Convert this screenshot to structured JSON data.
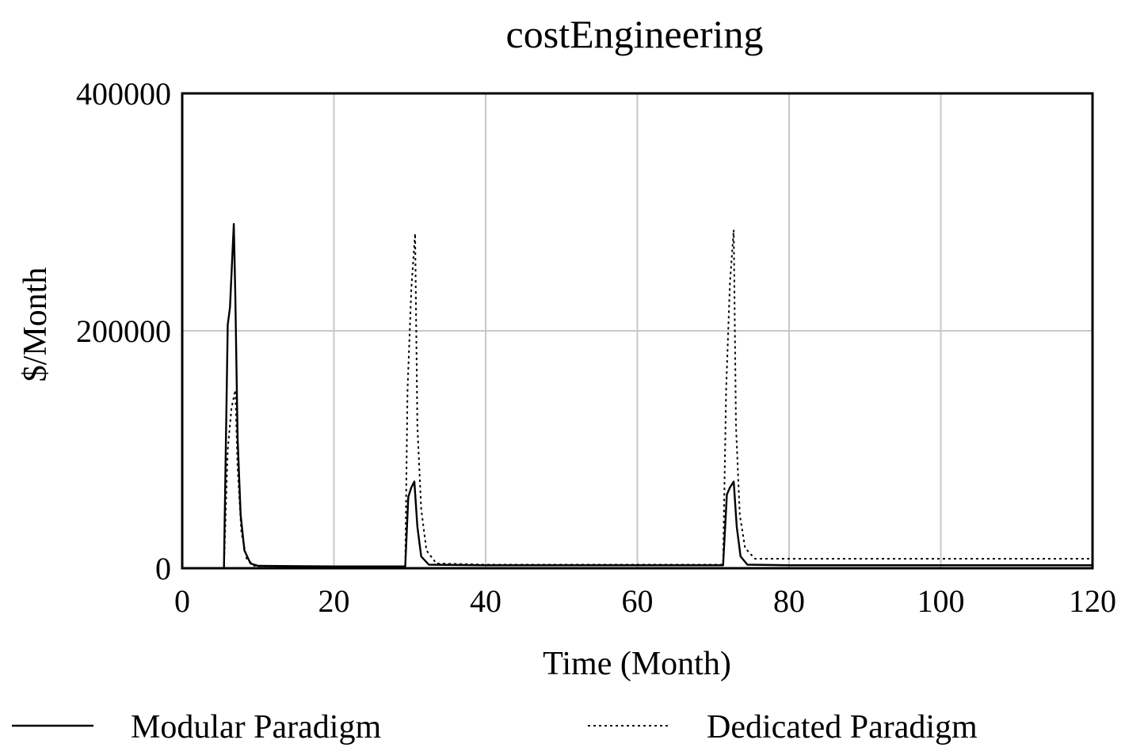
{
  "chart_data": {
    "type": "line",
    "title": "costEngineering",
    "xlabel": "Time (Month)",
    "ylabel": "$/Month",
    "xlim": [
      0,
      120
    ],
    "ylim": [
      0,
      400000
    ],
    "x_ticks": [
      0,
      20,
      40,
      60,
      80,
      100,
      120
    ],
    "x_tick_labels": [
      "0",
      "20",
      "40",
      "60",
      "80",
      "100",
      "120"
    ],
    "y_ticks": [
      0,
      200000,
      400000
    ],
    "y_tick_labels": [
      "0",
      "200000",
      "400000"
    ],
    "grid": true,
    "legend_position": "bottom",
    "series": [
      {
        "name": "Modular Paradigm",
        "style": "solid",
        "color": "#000000",
        "points": [
          [
            0,
            0
          ],
          [
            5.5,
            0
          ],
          [
            6.0,
            205000
          ],
          [
            6.3,
            220000
          ],
          [
            6.8,
            290000
          ],
          [
            7.0,
            230000
          ],
          [
            7.3,
            110000
          ],
          [
            7.7,
            45000
          ],
          [
            8.2,
            15000
          ],
          [
            9.0,
            4000
          ],
          [
            10,
            2000
          ],
          [
            20,
            1500
          ],
          [
            29.4,
            1500
          ],
          [
            29.8,
            60000
          ],
          [
            30.2,
            68000
          ],
          [
            30.6,
            73000
          ],
          [
            31.0,
            35000
          ],
          [
            31.5,
            10000
          ],
          [
            32.5,
            3000
          ],
          [
            40,
            2500
          ],
          [
            60,
            2500
          ],
          [
            71.3,
            2500
          ],
          [
            71.8,
            62000
          ],
          [
            72.2,
            68000
          ],
          [
            72.7,
            73000
          ],
          [
            73.1,
            35000
          ],
          [
            73.6,
            10000
          ],
          [
            74.5,
            3000
          ],
          [
            80,
            2500
          ],
          [
            100,
            2500
          ],
          [
            120,
            2500
          ]
        ]
      },
      {
        "name": "Dedicated Paradigm",
        "style": "dotted",
        "color": "#000000",
        "points": [
          [
            0,
            0
          ],
          [
            5.5,
            0
          ],
          [
            6.0,
            100000
          ],
          [
            6.5,
            135000
          ],
          [
            7.0,
            150000
          ],
          [
            7.3,
            85000
          ],
          [
            7.8,
            30000
          ],
          [
            8.5,
            8000
          ],
          [
            9.5,
            2000
          ],
          [
            20,
            1500
          ],
          [
            29.4,
            1500
          ],
          [
            29.7,
            150000
          ],
          [
            30.2,
            235000
          ],
          [
            30.7,
            282000
          ],
          [
            31.0,
            120000
          ],
          [
            31.5,
            50000
          ],
          [
            32.2,
            15000
          ],
          [
            33.5,
            4000
          ],
          [
            40,
            3000
          ],
          [
            60,
            3000
          ],
          [
            71.3,
            3000
          ],
          [
            71.7,
            150000
          ],
          [
            72.2,
            240000
          ],
          [
            72.7,
            285000
          ],
          [
            73.0,
            120000
          ],
          [
            73.5,
            45000
          ],
          [
            74.2,
            17000
          ],
          [
            75.5,
            8000
          ],
          [
            80,
            8000
          ],
          [
            100,
            8000
          ],
          [
            120,
            8000
          ]
        ]
      }
    ]
  }
}
